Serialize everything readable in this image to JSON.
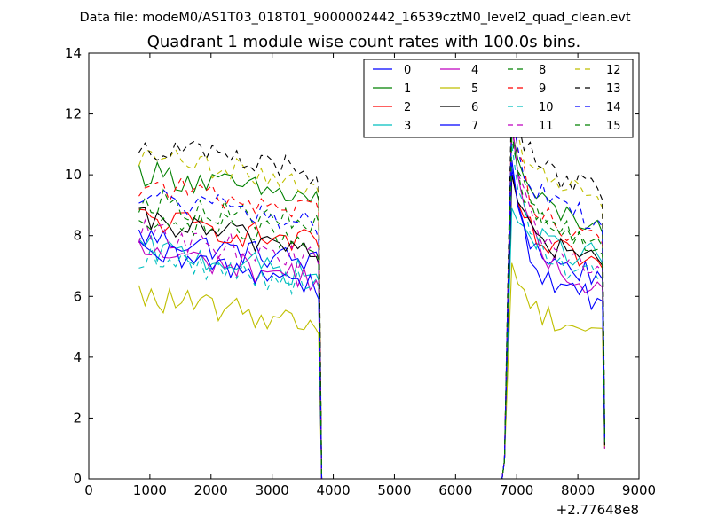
{
  "chart_data": {
    "type": "line",
    "supertitle": "Data file: modeM0/AS1T03_018T01_9000002442_16539cztM0_level2_quad_clean.evt",
    "title": "Quadrant 1 module wise count rates with 100.0s bins.",
    "xlabel": "",
    "ylabel": "",
    "x_offset_label": "+2.77648e8",
    "xlim": [
      0,
      9000
    ],
    "ylim": [
      0,
      14
    ],
    "xticks": [
      0,
      1000,
      2000,
      3000,
      4000,
      5000,
      6000,
      7000,
      8000,
      9000
    ],
    "yticks": [
      0,
      2,
      4,
      6,
      8,
      10,
      12,
      14
    ],
    "grid": false,
    "legend": {
      "placement": "top-right",
      "columns": 4
    },
    "x_seg1": [
      820,
      920,
      1020,
      1120,
      1220,
      1320,
      1420,
      1520,
      1620,
      1720,
      1820,
      1920,
      2020,
      2120,
      2220,
      2320,
      2420,
      2520,
      2620,
      2720,
      2820,
      2920,
      3020,
      3120,
      3220,
      3320,
      3420,
      3520,
      3620,
      3720
    ],
    "x_seg2": [
      6920,
      7020,
      7120,
      7220,
      7320,
      7420,
      7520,
      7620,
      7720,
      7820,
      7920,
      8020,
      8120,
      8220,
      8320
    ],
    "gap_start": 3810,
    "gap_end": 6760,
    "end_x": 8440,
    "series": [
      {
        "name": "0",
        "color": "#0000ff",
        "dash": false,
        "level1": 8.0,
        "peak": 10.2,
        "level2": 7.3,
        "end": 1.2
      },
      {
        "name": "1",
        "color": "#008000",
        "dash": false,
        "level1": 10.1,
        "peak": 11.5,
        "level2": 9.0,
        "end": 1.4
      },
      {
        "name": "2",
        "color": "#ff0000",
        "dash": false,
        "level1": 8.6,
        "peak": 10.0,
        "level2": 7.7,
        "end": 1.1
      },
      {
        "name": "3",
        "color": "#00bfbf",
        "dash": false,
        "level1": 7.6,
        "peak": 8.9,
        "level2": 7.9,
        "end": 1.2
      },
      {
        "name": "4",
        "color": "#bf00bf",
        "dash": false,
        "level1": 7.5,
        "peak": 11.8,
        "level2": 7.0,
        "end": 1.0
      },
      {
        "name": "5",
        "color": "#bfbf00",
        "dash": false,
        "level1": 6.0,
        "peak": 7.1,
        "level2": 5.5,
        "end": 1.0
      },
      {
        "name": "6",
        "color": "#000000",
        "dash": false,
        "level1": 8.5,
        "peak": 10.0,
        "level2": 7.8,
        "end": 1.1
      },
      {
        "name": "7",
        "color": "#0000ff",
        "dash": false,
        "level1": 7.4,
        "peak": 10.5,
        "level2": 6.5,
        "end": 1.2
      },
      {
        "name": "8",
        "color": "#008000",
        "dash": true,
        "level1": 9.2,
        "peak": 11.2,
        "level2": 8.5,
        "end": 1.3
      },
      {
        "name": "9",
        "color": "#ff0000",
        "dash": true,
        "level1": 9.7,
        "peak": 12.2,
        "level2": 8.6,
        "end": 1.2
      },
      {
        "name": "10",
        "color": "#00bfbf",
        "dash": true,
        "level1": 7.3,
        "peak": 11.0,
        "level2": 7.2,
        "end": 1.1
      },
      {
        "name": "11",
        "color": "#bf00bf",
        "dash": true,
        "level1": 8.1,
        "peak": 11.6,
        "level2": 7.6,
        "end": 1.0
      },
      {
        "name": "12",
        "color": "#bfbf00",
        "dash": true,
        "level1": 10.6,
        "peak": 12.4,
        "level2": 9.9,
        "end": 1.4
      },
      {
        "name": "13",
        "color": "#000000",
        "dash": true,
        "level1": 11.0,
        "peak": 12.9,
        "level2": 10.2,
        "end": 1.5
      },
      {
        "name": "14",
        "color": "#0000ff",
        "dash": true,
        "level1": 9.3,
        "peak": 12.0,
        "level2": 9.2,
        "end": 1.3
      },
      {
        "name": "15",
        "color": "#008000",
        "dash": true,
        "level1": 8.7,
        "peak": 11.4,
        "level2": 8.2,
        "end": 1.2
      }
    ]
  }
}
